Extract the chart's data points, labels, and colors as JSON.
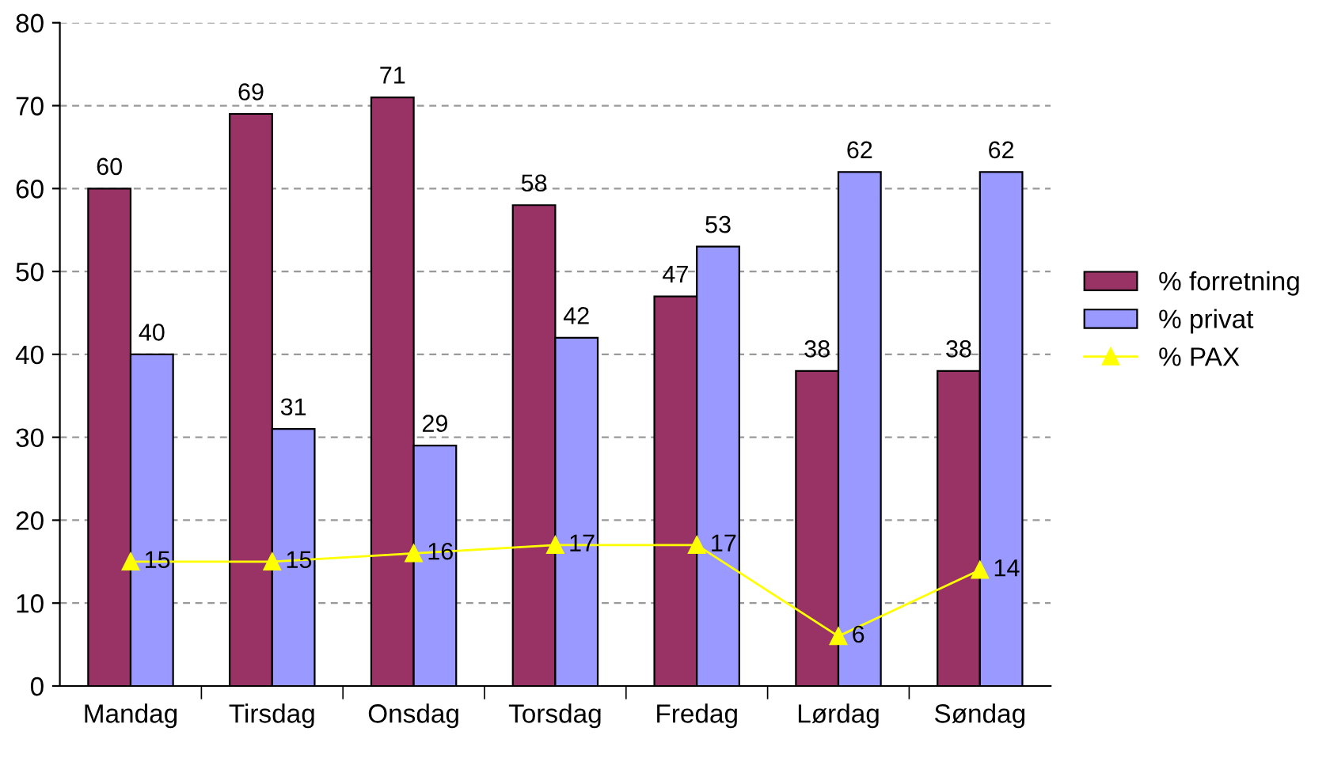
{
  "chart_data": {
    "type": "bar",
    "categories": [
      "Mandag",
      "Tirsdag",
      "Onsdag",
      "Torsdag",
      "Fredag",
      "Lørdag",
      "Søndag"
    ],
    "series": [
      {
        "name": "% forretning",
        "color": "#993366",
        "values": [
          60,
          69,
          71,
          58,
          47,
          38,
          38
        ]
      },
      {
        "name": "% privat",
        "color": "#9999ff",
        "values": [
          40,
          31,
          29,
          42,
          53,
          62,
          62
        ]
      },
      {
        "name": "% PAX",
        "color": "#ffff00",
        "type": "line",
        "marker": "triangle",
        "values": [
          15,
          15,
          16,
          17,
          17,
          6,
          14
        ]
      }
    ],
    "ylim": [
      0,
      80
    ],
    "yticks": [
      0,
      10,
      20,
      30,
      40,
      50,
      60,
      70,
      80
    ],
    "grid": "y",
    "legend": "right",
    "data_labels": true
  }
}
